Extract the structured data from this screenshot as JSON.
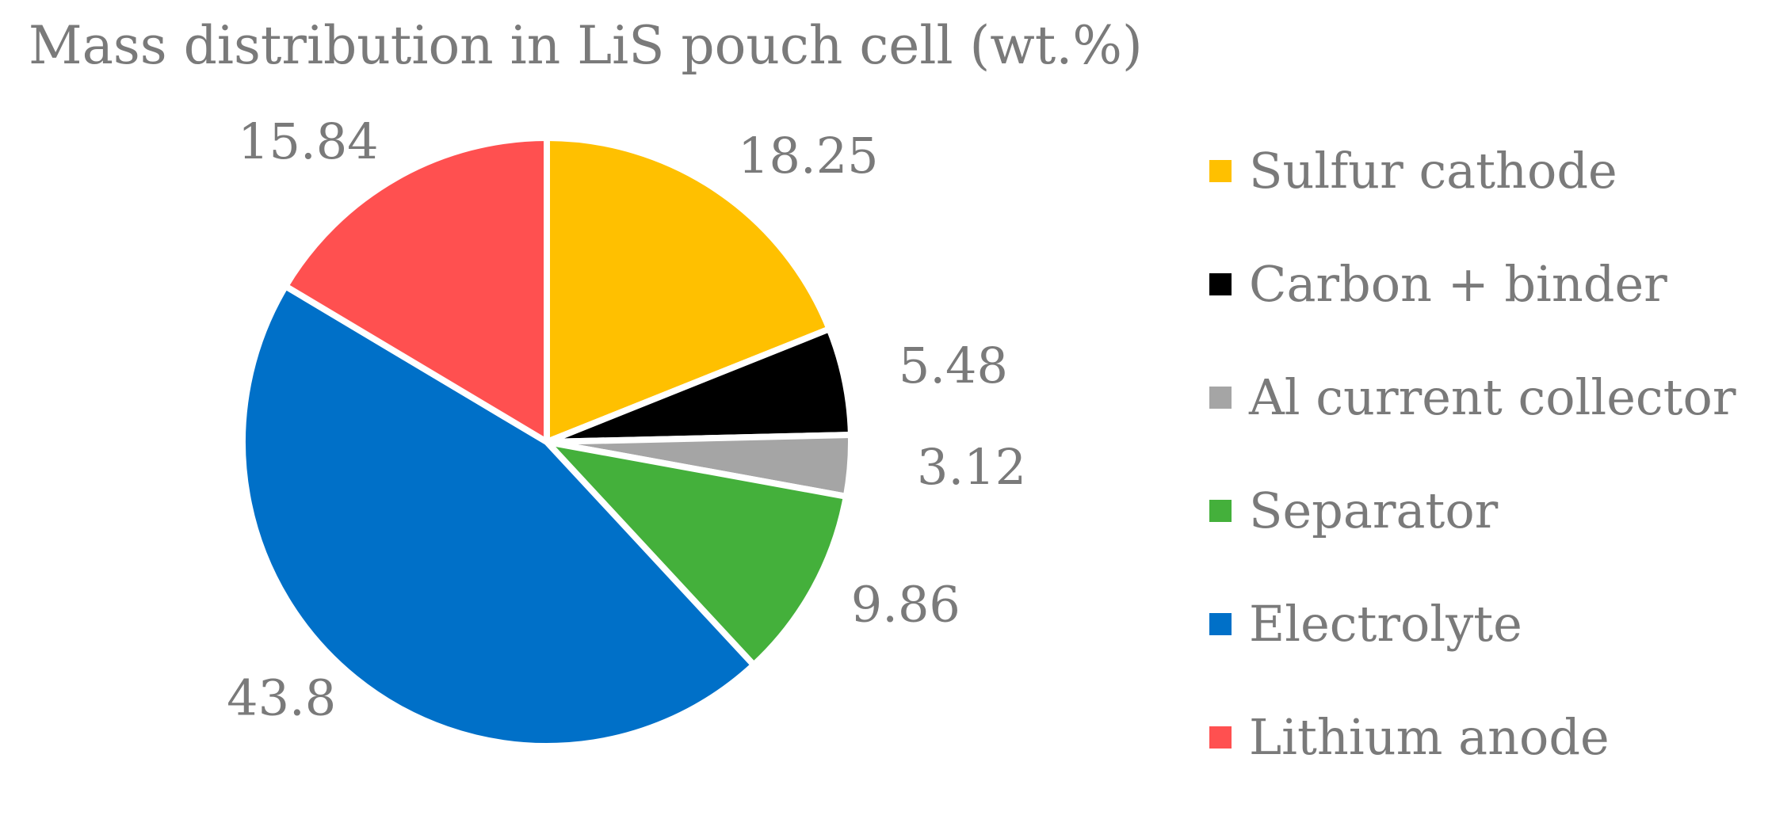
{
  "chart_data": {
    "type": "pie",
    "title": "Mass distribution in LiS pouch cell (wt.%)",
    "slices": [
      {
        "label": "Sulfur cathode",
        "value": 18.25,
        "value_label": "18.25",
        "color": "#FFC000"
      },
      {
        "label": "Carbon + binder",
        "value": 5.48,
        "value_label": "5.48",
        "color": "#000000"
      },
      {
        "label": "Al current collector",
        "value": 3.12,
        "value_label": "3.12",
        "color": "#A5A5A5"
      },
      {
        "label": "Separator",
        "value": 9.86,
        "value_label": "9.86",
        "color": "#44B03B"
      },
      {
        "label": "Electrolyte",
        "value": 43.8,
        "value_label": "43.8",
        "color": "#0070C8"
      },
      {
        "label": "Lithium anode",
        "value": 15.84,
        "value_label": "15.84",
        "color": "#FF5050"
      }
    ],
    "start_angle": "12 o'clock",
    "direction": "clockwise",
    "legend_position": "right"
  }
}
